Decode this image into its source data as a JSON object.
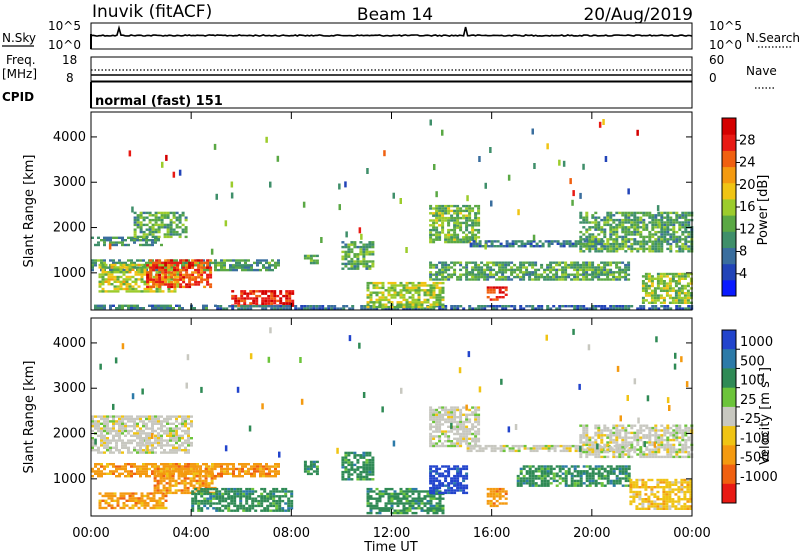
{
  "header": {
    "station": "Inuvik (fitACF)",
    "beam": "Beam 14",
    "date": "20/Aug/2019"
  },
  "aux_panels": {
    "nsky_label": "N.Sky",
    "nsearch_label": "N.Search",
    "noise_ticks_left": [
      "10^5",
      "10^0"
    ],
    "noise_ticks_right": [
      "10^5",
      "10^0"
    ],
    "freq_label": "Freq.",
    "freq_unit": "[MHz]",
    "freq_ticks": [
      "18",
      "8"
    ],
    "nave_label": "Nave",
    "nave_ticks": [
      "60",
      "0"
    ],
    "cpid_label": "CPID",
    "cpid_value": "normal (fast) 151"
  },
  "chart_data": [
    {
      "type": "heatmap",
      "name": "power",
      "ylabel": "Slant Range [km]",
      "y_ticks": [
        1000,
        2000,
        3000,
        4000
      ],
      "ylim": [
        180,
        4550
      ],
      "x_ticks": [
        "00:00",
        "04:00",
        "08:00",
        "12:00",
        "16:00",
        "20:00",
        "00:00"
      ],
      "xlim_hours": [
        0,
        24
      ],
      "colorbar": {
        "label": "Power [dB]",
        "ticks": [
          "4",
          "8",
          "12",
          "16",
          "20",
          "24",
          "28"
        ],
        "range": [
          0,
          32
        ],
        "colors": [
          "#0a1aff",
          "#2244b8",
          "#3a6e9e",
          "#3f8f6a",
          "#5aa844",
          "#9ccc2c",
          "#f0c414",
          "#f49a10",
          "#f06010",
          "#e81a14",
          "#d40000"
        ]
      },
      "echo_regions": [
        {
          "t": [
            0.0,
            7.5
          ],
          "r": [
            1050,
            1300
          ],
          "v": 11
        },
        {
          "t": [
            0.3,
            3.5
          ],
          "r": [
            600,
            1200
          ],
          "v": 17
        },
        {
          "t": [
            2.2,
            4.8
          ],
          "r": [
            700,
            1300
          ],
          "v": 26
        },
        {
          "t": [
            5.6,
            8.0
          ],
          "r": [
            280,
            620
          ],
          "v": 28
        },
        {
          "t": [
            0.0,
            2.8
          ],
          "r": [
            1600,
            1800
          ],
          "v": 10
        },
        {
          "t": [
            1.7,
            3.8
          ],
          "r": [
            1800,
            2350
          ],
          "v": 12
        },
        {
          "t": [
            0.0,
            5.0
          ],
          "r": [
            200,
            300
          ],
          "v": 9
        },
        {
          "t": [
            5.0,
            24.0
          ],
          "r": [
            200,
            290
          ],
          "v": 7
        },
        {
          "t": [
            8.5,
            9.0
          ],
          "r": [
            1200,
            1400
          ],
          "v": 12
        },
        {
          "t": [
            10.0,
            11.2
          ],
          "r": [
            1100,
            1700
          ],
          "v": 12
        },
        {
          "t": [
            11.0,
            14.0
          ],
          "r": [
            250,
            800
          ],
          "v": 16
        },
        {
          "t": [
            13.5,
            15.5
          ],
          "r": [
            1700,
            2500
          ],
          "v": 14
        },
        {
          "t": [
            15.0,
            20.5
          ],
          "r": [
            1600,
            1720
          ],
          "v": 8
        },
        {
          "t": [
            13.5,
            21.5
          ],
          "r": [
            850,
            1250
          ],
          "v": 12
        },
        {
          "t": [
            15.8,
            16.6
          ],
          "r": [
            400,
            700
          ],
          "v": 27
        },
        {
          "t": [
            19.5,
            24.0
          ],
          "r": [
            1500,
            2350
          ],
          "v": 12
        },
        {
          "t": [
            22.0,
            24.0
          ],
          "r": [
            350,
            1000
          ],
          "v": 15
        }
      ]
    },
    {
      "type": "heatmap",
      "name": "velocity",
      "ylabel": "Slant Range [km]",
      "y_ticks": [
        1000,
        2000,
        3000,
        4000
      ],
      "ylim": [
        180,
        4550
      ],
      "x_ticks": [
        "00:00",
        "04:00",
        "08:00",
        "12:00",
        "16:00",
        "20:00",
        "00:00"
      ],
      "xlim_hours": [
        0,
        24
      ],
      "xlabel": "Time UT",
      "colorbar": {
        "label": "Velocity [m s^-1]",
        "ticks": [
          "1000",
          "500",
          "100",
          "25",
          "-25",
          "-100",
          "-500",
          "-1000"
        ],
        "classes": [
          1000,
          500,
          100,
          25,
          -25,
          -100,
          -500,
          -1000
        ],
        "colors": [
          "#2244cc",
          "#2c7aa8",
          "#2f8a55",
          "#6cc43a",
          "#c8c8c0",
          "#f0c414",
          "#f49a10",
          "#f06010",
          "#e81a14"
        ]
      },
      "echo_regions": [
        {
          "t": [
            0.0,
            7.5
          ],
          "r": [
            1050,
            1350
          ],
          "v": -500
        },
        {
          "t": [
            0.3,
            3.0
          ],
          "r": [
            350,
            700
          ],
          "v": -500
        },
        {
          "t": [
            2.5,
            5.0
          ],
          "r": [
            700,
            1300
          ],
          "v": -500
        },
        {
          "t": [
            4.0,
            8.0
          ],
          "r": [
            300,
            800
          ],
          "v": 100
        },
        {
          "t": [
            0.0,
            4.0
          ],
          "r": [
            1600,
            2400
          ],
          "v": 0
        },
        {
          "t": [
            8.5,
            9.0
          ],
          "r": [
            1100,
            1400
          ],
          "v": 100
        },
        {
          "t": [
            10.0,
            11.2
          ],
          "r": [
            1000,
            1600
          ],
          "v": 100
        },
        {
          "t": [
            11.0,
            14.0
          ],
          "r": [
            250,
            800
          ],
          "v": 100
        },
        {
          "t": [
            13.5,
            15.0
          ],
          "r": [
            700,
            1300
          ],
          "v": 1000
        },
        {
          "t": [
            13.5,
            15.5
          ],
          "r": [
            1700,
            2600
          ],
          "v": 0
        },
        {
          "t": [
            15.8,
            16.6
          ],
          "r": [
            400,
            800
          ],
          "v": -500
        },
        {
          "t": [
            15.0,
            21.5
          ],
          "r": [
            1600,
            1750
          ],
          "v": 0
        },
        {
          "t": [
            17.0,
            21.5
          ],
          "r": [
            850,
            1300
          ],
          "v": 100
        },
        {
          "t": [
            19.5,
            24.0
          ],
          "r": [
            1500,
            2200
          ],
          "v": 0
        },
        {
          "t": [
            21.5,
            24.0
          ],
          "r": [
            350,
            1000
          ],
          "v": -100
        }
      ]
    }
  ]
}
